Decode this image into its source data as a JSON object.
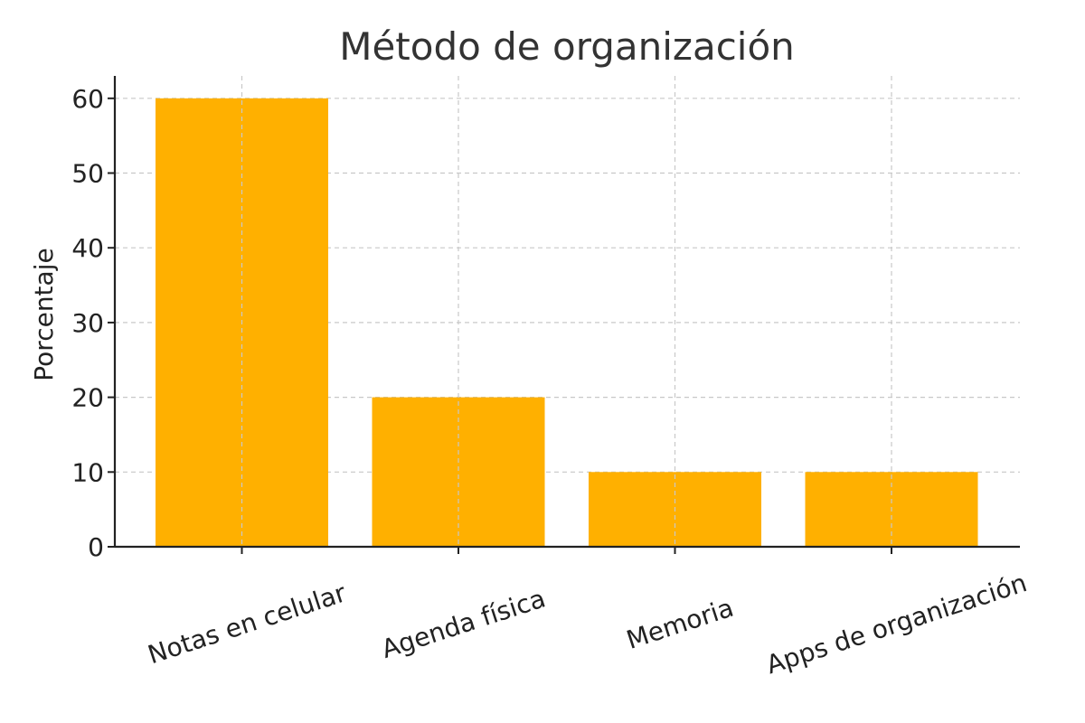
{
  "chart_data": {
    "type": "bar",
    "title": "Método de organización",
    "xlabel": "",
    "ylabel": "Porcentaje",
    "categories": [
      "Notas en celular",
      "Agenda física",
      "Memoria",
      "Apps de organización"
    ],
    "values": [
      60,
      20,
      10,
      10
    ],
    "ylim": [
      0,
      63
    ],
    "yticks": [
      0,
      10,
      20,
      30,
      40,
      50,
      60
    ],
    "grid": true,
    "bar_color": "#FFB000",
    "legend": "none"
  }
}
